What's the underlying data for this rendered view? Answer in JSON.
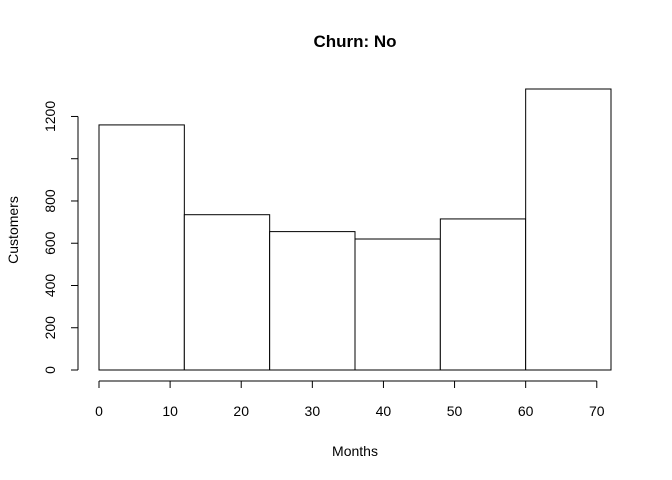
{
  "chart_data": {
    "type": "bar",
    "title": "Churn: No",
    "xlabel": "Months",
    "ylabel": "Customers",
    "bins": [
      {
        "x0": 0,
        "x1": 12,
        "value": 1160
      },
      {
        "x0": 12,
        "x1": 24,
        "value": 735
      },
      {
        "x0": 24,
        "x1": 36,
        "value": 655
      },
      {
        "x0": 36,
        "x1": 48,
        "value": 620
      },
      {
        "x0": 48,
        "x1": 60,
        "value": 715
      },
      {
        "x0": 60,
        "x1": 72,
        "value": 1330
      }
    ],
    "x_ticks": [
      0,
      10,
      20,
      30,
      40,
      50,
      60,
      70
    ],
    "y_ticks": [
      0,
      200,
      400,
      600,
      800,
      1000,
      1200
    ],
    "y_tick_labels": [
      "0",
      "200",
      "400",
      "600",
      "800",
      "",
      "1200"
    ],
    "xlim": [
      0,
      72
    ],
    "ylim": [
      0,
      1330
    ],
    "grid": false,
    "legend": "none"
  }
}
